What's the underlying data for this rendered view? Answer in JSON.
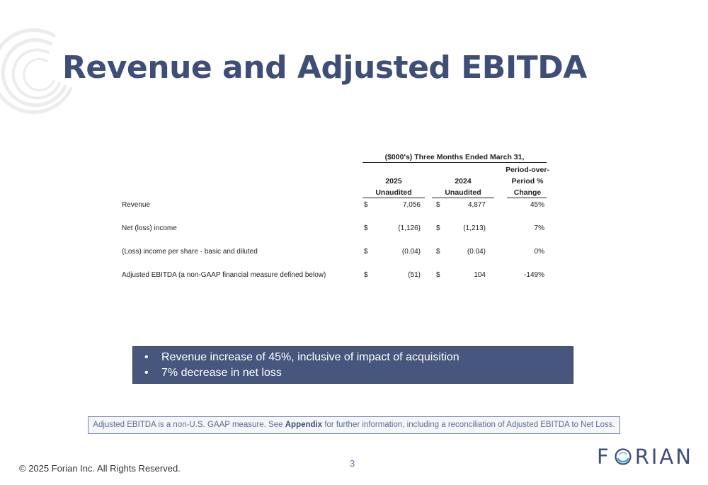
{
  "slide": {
    "title": "Revenue and Adjusted EBITDA",
    "page_number": "3",
    "copyright": "© 2025 Forian Inc.  All Rights Reserved."
  },
  "logo": {
    "letters_before": "F",
    "letters_after": "RIAN",
    "icon": "forian-o-mark-icon"
  },
  "table": {
    "super_header": "($000's) Three Months Ended March 31,",
    "columns": [
      {
        "line1": "2025",
        "line2": "Unaudited"
      },
      {
        "line1": "2024",
        "line2": "Unaudited"
      },
      {
        "line1": "Period-over-",
        "line2": "Period %",
        "line3": "Change"
      }
    ],
    "rows": [
      {
        "label": "Revenue",
        "cur1": "$",
        "v1": "7,056",
        "cur2": "$",
        "v2": "4,877",
        "change": "45%"
      },
      {
        "label": "Net (loss) income",
        "cur1": "$",
        "v1": "(1,126)",
        "cur2": "$",
        "v2": "(1,213)",
        "change": "7%"
      },
      {
        "label": "(Loss) income per share - basic and diluted",
        "cur1": "$",
        "v1": "(0.04)",
        "cur2": "$",
        "v2": "(0.04)",
        "change": "0%"
      },
      {
        "label": "Adjusted EBITDA (a non-GAAP financial measure defined below)",
        "cur1": "$",
        "v1": "(51)",
        "cur2": "$",
        "v2": "104",
        "change": "-149%"
      }
    ]
  },
  "callout": {
    "bullets": [
      "Revenue increase of 45%, inclusive of impact of acquisition",
      "7% decrease in net loss"
    ]
  },
  "footnote": {
    "pre": "Adjusted EBITDA is a non-U.S. GAAP measure. See ",
    "bold": "Appendix",
    "post": " for further information, including a reconciliation of Adjusted EBITDA to Net Loss."
  },
  "colors": {
    "brand_navy": "#3e4e78",
    "callout_bg": "#46567d",
    "note_border": "#6f83a8"
  }
}
